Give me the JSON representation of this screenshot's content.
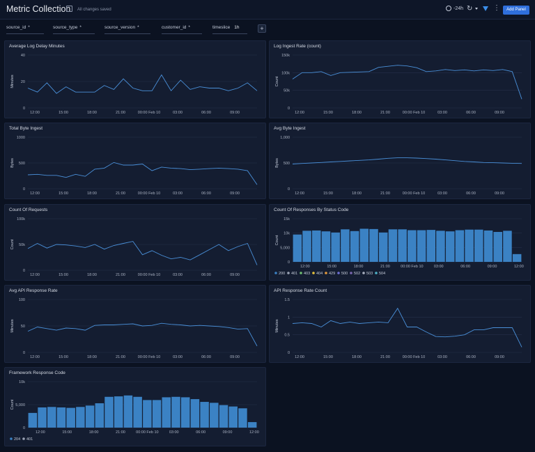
{
  "header": {
    "title": "Metric Collection",
    "saved_status": "All changes saved",
    "time_range": "-24h",
    "add_panel_label": "Add Panel"
  },
  "filters": {
    "chips": [
      {
        "label": "source_id",
        "value": "*"
      },
      {
        "label": "source_type",
        "value": "*"
      },
      {
        "label": "source_version",
        "value": "*"
      },
      {
        "label": "customer_id",
        "value": "*"
      },
      {
        "label": "timeslice",
        "value": "1h"
      }
    ]
  },
  "panels": [
    {
      "title": "Average Log Delay Minutes"
    },
    {
      "title": "Log Ingest Rate (count)"
    },
    {
      "title": "Total Byte Ingest"
    },
    {
      "title": "Avg Byte Ingest"
    },
    {
      "title": "Count Of Requests"
    },
    {
      "title": "Count Of Responses By Status Code"
    },
    {
      "title": "Avg API Response Rate"
    },
    {
      "title": "API Response Rate Count"
    },
    {
      "title": "Framework Response Code"
    }
  ],
  "chart_data": [
    {
      "type": "line",
      "title": "Average Log Delay Minutes",
      "ylabel": "Minutes",
      "ylim": [
        0,
        40
      ],
      "yticks": [
        0,
        20,
        40
      ],
      "ytick_labels": [
        "0",
        "20",
        "40"
      ],
      "xticks": [
        "12:00",
        "15:00",
        "18:00",
        "21:00",
        "00:00 Feb 10",
        "03:00",
        "06:00",
        "09:00"
      ],
      "values": [
        15,
        12,
        19,
        11,
        16,
        12,
        12,
        12,
        17,
        14,
        22,
        15,
        13,
        13,
        25,
        13,
        21,
        14,
        16,
        15,
        15,
        13,
        15,
        19,
        13
      ],
      "color": "#4a90d9"
    },
    {
      "type": "line",
      "title": "Log Ingest Rate (count)",
      "ylabel": "Count",
      "ylim": [
        0,
        150000
      ],
      "yticks": [
        0,
        50000,
        100000,
        150000
      ],
      "ytick_labels": [
        "0",
        "50k",
        "100k",
        "150k"
      ],
      "xticks": [
        "12:00",
        "15:00",
        "18:00",
        "21:00",
        "00:00 Feb 10",
        "03:00",
        "06:00",
        "09:00"
      ],
      "values": [
        82000,
        100000,
        100000,
        103000,
        92000,
        100000,
        101000,
        102000,
        103000,
        115000,
        118000,
        121000,
        119000,
        114000,
        103000,
        105000,
        109000,
        106000,
        108000,
        105000,
        108000,
        106000,
        109000,
        103000,
        25000
      ],
      "color": "#4a90d9"
    },
    {
      "type": "line",
      "title": "Total Byte Ingest",
      "ylabel": "Bytes",
      "ylim": [
        0,
        1000
      ],
      "yticks": [
        0,
        500,
        1000
      ],
      "ytick_labels": [
        "0",
        "500",
        "1000"
      ],
      "xticks": [
        "12:00",
        "15:00",
        "18:00",
        "21:00",
        "00:00 Feb 10",
        "03:00",
        "06:00",
        "09:00"
      ],
      "values": [
        270,
        280,
        260,
        260,
        220,
        280,
        240,
        380,
        400,
        510,
        460,
        460,
        480,
        350,
        420,
        400,
        390,
        370,
        380,
        390,
        400,
        390,
        380,
        350,
        80
      ],
      "color": "#4a90d9"
    },
    {
      "type": "line",
      "title": "Avg Byte Ingest",
      "ylabel": "Bytes",
      "ylim": [
        0,
        1000
      ],
      "yticks": [
        0,
        500,
        1000
      ],
      "ytick_labels": [
        "0",
        "500",
        "1,000"
      ],
      "xticks": [
        "12:00",
        "15:00",
        "18:00",
        "21:00",
        "00:00 Feb 10",
        "03:00",
        "06:00",
        "09:00"
      ],
      "values": [
        480,
        490,
        500,
        510,
        520,
        530,
        540,
        550,
        560,
        575,
        590,
        600,
        600,
        595,
        585,
        575,
        560,
        545,
        530,
        520,
        510,
        505,
        500,
        495,
        490
      ],
      "color": "#4a90d9"
    },
    {
      "type": "line",
      "title": "Count Of Requests",
      "ylabel": "Count",
      "ylim": [
        0,
        100000
      ],
      "yticks": [
        0,
        50000,
        100000
      ],
      "ytick_labels": [
        "0",
        "50k",
        "100k"
      ],
      "xticks": [
        "12:00",
        "15:00",
        "18:00",
        "21:00",
        "00:00 Feb 10",
        "03:00",
        "06:00",
        "09:00"
      ],
      "values": [
        42000,
        52000,
        43000,
        50000,
        49000,
        47000,
        44000,
        50000,
        41000,
        48000,
        52000,
        56000,
        30000,
        38000,
        29000,
        22000,
        25000,
        20000,
        30000,
        40000,
        50000,
        38000,
        46000,
        52000,
        10000
      ],
      "color": "#4a90d9"
    },
    {
      "type": "bar",
      "title": "Count Of Responses By Status Code",
      "ylabel": "Count",
      "ylim": [
        0,
        15000
      ],
      "yticks": [
        0,
        5000,
        10000,
        15000
      ],
      "ytick_labels": [
        "0",
        "5,000",
        "10k",
        "15k"
      ],
      "xticks": [
        "12:00",
        "15:00",
        "18:00",
        "21:00",
        "00:00 Feb 10",
        "03:00",
        "06:00",
        "09:00",
        "12:00"
      ],
      "values": [
        9500,
        10800,
        10900,
        10600,
        10200,
        11300,
        10700,
        11500,
        11400,
        10200,
        11300,
        11300,
        11000,
        11000,
        11100,
        10800,
        10600,
        11000,
        11200,
        11200,
        10900,
        10400,
        10800,
        2700
      ],
      "legend": [
        "200",
        "401",
        "403",
        "404",
        "429",
        "500",
        "502",
        "503",
        "504"
      ],
      "legend_colors": [
        "#3b82c4",
        "#9aa3b5",
        "#6fbf73",
        "#e6c13c",
        "#e69a3c",
        "#6b6fd4",
        "#7b68b0",
        "#a9b0c0",
        "#4fb3c9"
      ],
      "color": "#3b82c4"
    },
    {
      "type": "line",
      "title": "Avg API Response Rate",
      "ylabel": "Minutes",
      "ylim": [
        0,
        100
      ],
      "yticks": [
        0,
        50,
        100
      ],
      "ytick_labels": [
        "0",
        "50",
        "100"
      ],
      "xticks": [
        "12:00",
        "15:00",
        "18:00",
        "21:00",
        "00:00 Feb 10",
        "03:00",
        "06:00",
        "09:00"
      ],
      "values": [
        40,
        48,
        45,
        42,
        46,
        45,
        42,
        51,
        52,
        52,
        53,
        54,
        50,
        51,
        55,
        53,
        52,
        50,
        51,
        50,
        49,
        47,
        44,
        45,
        12
      ],
      "color": "#4a90d9"
    },
    {
      "type": "line",
      "title": "API Response Rate Count",
      "ylabel": "Minutes",
      "ylim": [
        0,
        1.5
      ],
      "yticks": [
        0,
        0.5,
        1,
        1.5
      ],
      "ytick_labels": [
        "0",
        "0.5",
        "1",
        "1.5"
      ],
      "xticks": [
        "12:00",
        "15:00",
        "18:00",
        "21:00",
        "00:00 Feb 10",
        "03:00",
        "06:00",
        "09:00"
      ],
      "values": [
        0.82,
        0.84,
        0.82,
        0.72,
        0.9,
        0.82,
        0.86,
        0.82,
        0.84,
        0.86,
        0.84,
        1.25,
        0.72,
        0.72,
        0.58,
        0.45,
        0.44,
        0.46,
        0.5,
        0.64,
        0.64,
        0.7,
        0.7,
        0.7,
        0.15
      ],
      "color": "#4a90d9"
    },
    {
      "type": "bar",
      "title": "Framework Response Code",
      "ylabel": "Count",
      "ylim": [
        0,
        10000
      ],
      "yticks": [
        0,
        5000,
        10000
      ],
      "ytick_labels": [
        "0",
        "5,000",
        "10k"
      ],
      "xticks": [
        "12:00",
        "15:00",
        "18:00",
        "21:00",
        "00:00 Feb 10",
        "03:00",
        "06:00",
        "09:00",
        "12:00"
      ],
      "values": [
        3200,
        4400,
        4500,
        4400,
        4300,
        4500,
        4800,
        5300,
        6700,
        6800,
        7000,
        6700,
        6000,
        6000,
        6600,
        6700,
        6600,
        6200,
        5600,
        5400,
        4900,
        4600,
        4200,
        1200
      ],
      "legend": [
        "204",
        "401"
      ],
      "legend_colors": [
        "#3b82c4",
        "#9aa3b5"
      ],
      "color": "#3b82c4"
    }
  ]
}
